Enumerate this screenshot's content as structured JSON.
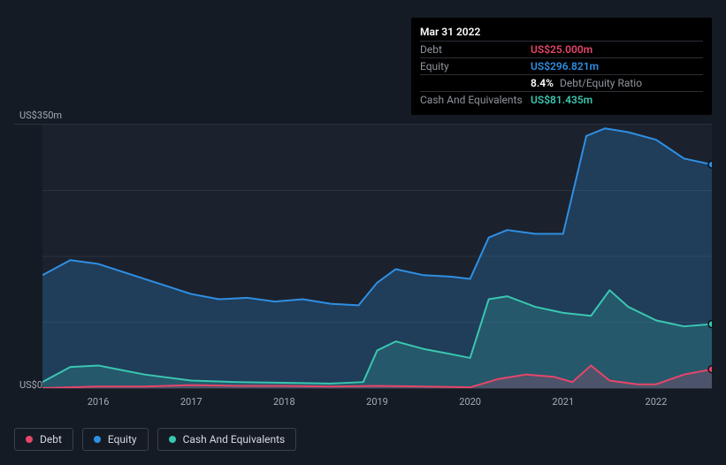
{
  "tooltip": {
    "date": "Mar 31 2022",
    "rows": [
      {
        "label": "Debt",
        "value": "US$25.000m",
        "color": "#e8456a"
      },
      {
        "label": "Equity",
        "value": "US$296.821m",
        "color": "#2f8fe3"
      },
      {
        "label": "",
        "value": "8.4%",
        "extra": "Debt/Equity Ratio",
        "color": "#ffffff"
      },
      {
        "label": "Cash And Equivalents",
        "value": "US$81.435m",
        "color": "#3ac7b0"
      }
    ]
  },
  "chart": {
    "type": "area",
    "background_plot": "#1b222d",
    "background_page": "#151b24",
    "grid_color": "#2c323d",
    "ymin": 0,
    "ymax": 350,
    "y_ticks": [
      {
        "v": 0,
        "label": "US$0"
      },
      {
        "v": 350,
        "label": "US$350m"
      }
    ],
    "internal_gridlines_y": [
      87.5,
      175,
      262.5
    ],
    "x_years": [
      2016,
      2017,
      2018,
      2019,
      2020,
      2021,
      2022
    ],
    "x_min": 2015.4,
    "x_max": 2022.6,
    "series": [
      {
        "name": "Equity",
        "color": "#2f8fe3",
        "fill": "rgba(47,143,227,0.25)",
        "points": [
          [
            2015.4,
            150
          ],
          [
            2015.7,
            170
          ],
          [
            2016.0,
            165
          ],
          [
            2016.5,
            145
          ],
          [
            2017.0,
            125
          ],
          [
            2017.3,
            118
          ],
          [
            2017.6,
            120
          ],
          [
            2017.9,
            115
          ],
          [
            2018.2,
            118
          ],
          [
            2018.5,
            112
          ],
          [
            2018.8,
            110
          ],
          [
            2019.0,
            140
          ],
          [
            2019.2,
            158
          ],
          [
            2019.5,
            150
          ],
          [
            2019.8,
            148
          ],
          [
            2020.0,
            145
          ],
          [
            2020.2,
            200
          ],
          [
            2020.4,
            210
          ],
          [
            2020.7,
            205
          ],
          [
            2021.0,
            205
          ],
          [
            2021.25,
            335
          ],
          [
            2021.45,
            345
          ],
          [
            2021.7,
            340
          ],
          [
            2022.0,
            330
          ],
          [
            2022.3,
            305
          ],
          [
            2022.6,
            297
          ]
        ]
      },
      {
        "name": "Cash And Equivalents",
        "color": "#3ac7b0",
        "fill": "rgba(58,199,176,0.20)",
        "points": [
          [
            2015.4,
            8
          ],
          [
            2015.7,
            28
          ],
          [
            2016.0,
            30
          ],
          [
            2016.5,
            18
          ],
          [
            2017.0,
            10
          ],
          [
            2017.5,
            8
          ],
          [
            2018.0,
            7
          ],
          [
            2018.5,
            6
          ],
          [
            2018.85,
            8
          ],
          [
            2019.0,
            50
          ],
          [
            2019.2,
            62
          ],
          [
            2019.5,
            52
          ],
          [
            2019.8,
            45
          ],
          [
            2020.0,
            40
          ],
          [
            2020.2,
            118
          ],
          [
            2020.4,
            122
          ],
          [
            2020.7,
            108
          ],
          [
            2021.0,
            100
          ],
          [
            2021.3,
            96
          ],
          [
            2021.5,
            130
          ],
          [
            2021.7,
            108
          ],
          [
            2022.0,
            90
          ],
          [
            2022.3,
            82
          ],
          [
            2022.6,
            85
          ]
        ]
      },
      {
        "name": "Debt",
        "color": "#e8456a",
        "fill": "rgba(232,69,106,0.20)",
        "points": [
          [
            2015.4,
            0
          ],
          [
            2016.0,
            2
          ],
          [
            2016.5,
            2
          ],
          [
            2017.0,
            4
          ],
          [
            2017.5,
            3
          ],
          [
            2018.0,
            3
          ],
          [
            2018.5,
            2
          ],
          [
            2019.0,
            3
          ],
          [
            2019.5,
            2
          ],
          [
            2020.0,
            1
          ],
          [
            2020.3,
            12
          ],
          [
            2020.6,
            18
          ],
          [
            2020.9,
            15
          ],
          [
            2021.1,
            8
          ],
          [
            2021.3,
            30
          ],
          [
            2021.5,
            10
          ],
          [
            2021.8,
            5
          ],
          [
            2022.0,
            5
          ],
          [
            2022.3,
            18
          ],
          [
            2022.6,
            25
          ]
        ]
      }
    ],
    "legend": [
      {
        "label": "Debt",
        "color": "#e8456a"
      },
      {
        "label": "Equity",
        "color": "#2f8fe3"
      },
      {
        "label": "Cash And Equivalents",
        "color": "#3ac7b0"
      }
    ]
  }
}
